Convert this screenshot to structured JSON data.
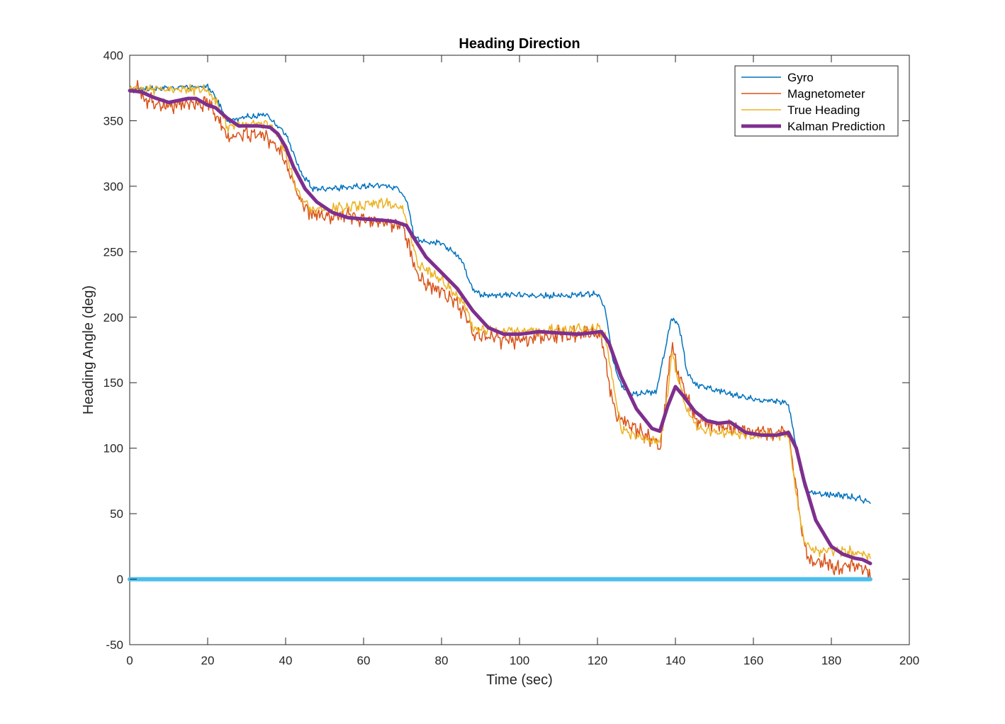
{
  "chart_data": {
    "type": "line",
    "title": "Heading Direction",
    "xlabel": "Time (sec)",
    "ylabel": "Heading Angle (deg)",
    "xlim": [
      0,
      200
    ],
    "ylim": [
      -50,
      400
    ],
    "xticks": [
      0,
      20,
      40,
      60,
      80,
      100,
      120,
      140,
      160,
      180,
      200
    ],
    "yticks": [
      -50,
      0,
      50,
      100,
      150,
      200,
      250,
      300,
      350,
      400
    ],
    "grid": false,
    "legend_position": "top-right",
    "series": [
      {
        "name": "Gyro",
        "color": "#0072BD",
        "width": 1.5,
        "noise": 3,
        "points": [
          [
            0,
            374
          ],
          [
            20,
            376
          ],
          [
            22,
            368
          ],
          [
            25,
            350
          ],
          [
            28,
            352
          ],
          [
            35,
            355
          ],
          [
            37,
            348
          ],
          [
            40,
            340
          ],
          [
            42,
            325
          ],
          [
            44,
            310
          ],
          [
            47,
            298
          ],
          [
            55,
            299
          ],
          [
            65,
            301
          ],
          [
            69,
            298
          ],
          [
            71,
            290
          ],
          [
            73,
            262
          ],
          [
            75,
            258
          ],
          [
            80,
            256
          ],
          [
            82,
            252
          ],
          [
            85,
            245
          ],
          [
            88,
            222
          ],
          [
            90,
            217
          ],
          [
            100,
            217
          ],
          [
            110,
            216
          ],
          [
            120,
            218
          ],
          [
            122,
            206
          ],
          [
            124,
            166
          ],
          [
            126,
            148
          ],
          [
            129,
            142
          ],
          [
            135,
            143
          ],
          [
            137,
            170
          ],
          [
            139,
            199
          ],
          [
            141,
            193
          ],
          [
            143,
            158
          ],
          [
            145,
            149
          ],
          [
            150,
            145
          ],
          [
            155,
            141
          ],
          [
            160,
            137
          ],
          [
            166,
            136
          ],
          [
            169,
            134
          ],
          [
            171,
            100
          ],
          [
            173,
            70
          ],
          [
            175,
            66
          ],
          [
            185,
            63
          ],
          [
            190,
            59
          ]
        ]
      },
      {
        "name": "Magnetometer",
        "color": "#D95319",
        "width": 1.5,
        "noise": 8,
        "points": [
          [
            0,
            372
          ],
          [
            2,
            374
          ],
          [
            4,
            366
          ],
          [
            10,
            360
          ],
          [
            15,
            364
          ],
          [
            20,
            364
          ],
          [
            22,
            355
          ],
          [
            25,
            338
          ],
          [
            30,
            340
          ],
          [
            35,
            338
          ],
          [
            38,
            330
          ],
          [
            40,
            318
          ],
          [
            42,
            303
          ],
          [
            44,
            288
          ],
          [
            46,
            280
          ],
          [
            50,
            278
          ],
          [
            60,
            275
          ],
          [
            65,
            274
          ],
          [
            70,
            270
          ],
          [
            72,
            250
          ],
          [
            74,
            232
          ],
          [
            77,
            224
          ],
          [
            80,
            220
          ],
          [
            83,
            212
          ],
          [
            86,
            203
          ],
          [
            88,
            187
          ],
          [
            92,
            185
          ],
          [
            98,
            182
          ],
          [
            105,
            185
          ],
          [
            110,
            187
          ],
          [
            120,
            188
          ],
          [
            121,
            183
          ],
          [
            123,
            150
          ],
          [
            125,
            123
          ],
          [
            128,
            118
          ],
          [
            135,
            105
          ],
          [
            136,
            98
          ],
          [
            138,
            150
          ],
          [
            139,
            180
          ],
          [
            141,
            155
          ],
          [
            143,
            140
          ],
          [
            145,
            122
          ],
          [
            150,
            117
          ],
          [
            155,
            116
          ],
          [
            160,
            113
          ],
          [
            165,
            112
          ],
          [
            169,
            113
          ],
          [
            171,
            70
          ],
          [
            172,
            45
          ],
          [
            174,
            15
          ],
          [
            178,
            12
          ],
          [
            182,
            8
          ],
          [
            186,
            12
          ],
          [
            190,
            5
          ]
        ]
      },
      {
        "name": "True Heading",
        "color": "#EDB120",
        "width": 1.5,
        "noise": 5,
        "points": [
          [
            0,
            374
          ],
          [
            20,
            374
          ],
          [
            22,
            366
          ],
          [
            25,
            345
          ],
          [
            30,
            348
          ],
          [
            35,
            348
          ],
          [
            38,
            340
          ],
          [
            40,
            325
          ],
          [
            42,
            305
          ],
          [
            44,
            290
          ],
          [
            47,
            282
          ],
          [
            55,
            284
          ],
          [
            65,
            287
          ],
          [
            70,
            284
          ],
          [
            72,
            262
          ],
          [
            74,
            240
          ],
          [
            77,
            234
          ],
          [
            80,
            228
          ],
          [
            83,
            220
          ],
          [
            86,
            210
          ],
          [
            88,
            192
          ],
          [
            95,
            190
          ],
          [
            105,
            190
          ],
          [
            115,
            191
          ],
          [
            120,
            192
          ],
          [
            122,
            184
          ],
          [
            124,
            150
          ],
          [
            126,
            115
          ],
          [
            129,
            110
          ],
          [
            136,
            104
          ],
          [
            138,
            140
          ],
          [
            139,
            172
          ],
          [
            141,
            150
          ],
          [
            143,
            128
          ],
          [
            146,
            115
          ],
          [
            150,
            112
          ],
          [
            160,
            110
          ],
          [
            169,
            110
          ],
          [
            171,
            65
          ],
          [
            173,
            30
          ],
          [
            175,
            22
          ],
          [
            185,
            21
          ],
          [
            190,
            18
          ]
        ]
      },
      {
        "name": "Kalman Prediction",
        "color": "#7E2F8E",
        "width": 5,
        "noise": 0,
        "points": [
          [
            0,
            373
          ],
          [
            3,
            372
          ],
          [
            6,
            368
          ],
          [
            10,
            364
          ],
          [
            15,
            367
          ],
          [
            17,
            367
          ],
          [
            20,
            362
          ],
          [
            22,
            360
          ],
          [
            25,
            352
          ],
          [
            28,
            346
          ],
          [
            33,
            346
          ],
          [
            36,
            345
          ],
          [
            38,
            340
          ],
          [
            40,
            330
          ],
          [
            42,
            315
          ],
          [
            45,
            298
          ],
          [
            48,
            288
          ],
          [
            52,
            280
          ],
          [
            56,
            276
          ],
          [
            60,
            275
          ],
          [
            65,
            274
          ],
          [
            68,
            273
          ],
          [
            71,
            270
          ],
          [
            73,
            260
          ],
          [
            76,
            246
          ],
          [
            80,
            234
          ],
          [
            84,
            222
          ],
          [
            88,
            205
          ],
          [
            92,
            192
          ],
          [
            96,
            187
          ],
          [
            100,
            187
          ],
          [
            105,
            189
          ],
          [
            110,
            188
          ],
          [
            115,
            187
          ],
          [
            118,
            188
          ],
          [
            121,
            189
          ],
          [
            123,
            180
          ],
          [
            126,
            155
          ],
          [
            130,
            130
          ],
          [
            134,
            115
          ],
          [
            136,
            113
          ],
          [
            138,
            132
          ],
          [
            140,
            147
          ],
          [
            142,
            140
          ],
          [
            145,
            128
          ],
          [
            148,
            121
          ],
          [
            151,
            119
          ],
          [
            154,
            120
          ],
          [
            158,
            112
          ],
          [
            162,
            110
          ],
          [
            166,
            110
          ],
          [
            169,
            112
          ],
          [
            171,
            100
          ],
          [
            173,
            75
          ],
          [
            176,
            45
          ],
          [
            180,
            25
          ],
          [
            183,
            19
          ],
          [
            186,
            16
          ],
          [
            188,
            15
          ],
          [
            190,
            12
          ]
        ]
      },
      {
        "name": "",
        "color": "#4DBEEE",
        "width": 6,
        "noise": 0,
        "points": [
          [
            0,
            0
          ],
          [
            190,
            0
          ]
        ]
      }
    ]
  }
}
